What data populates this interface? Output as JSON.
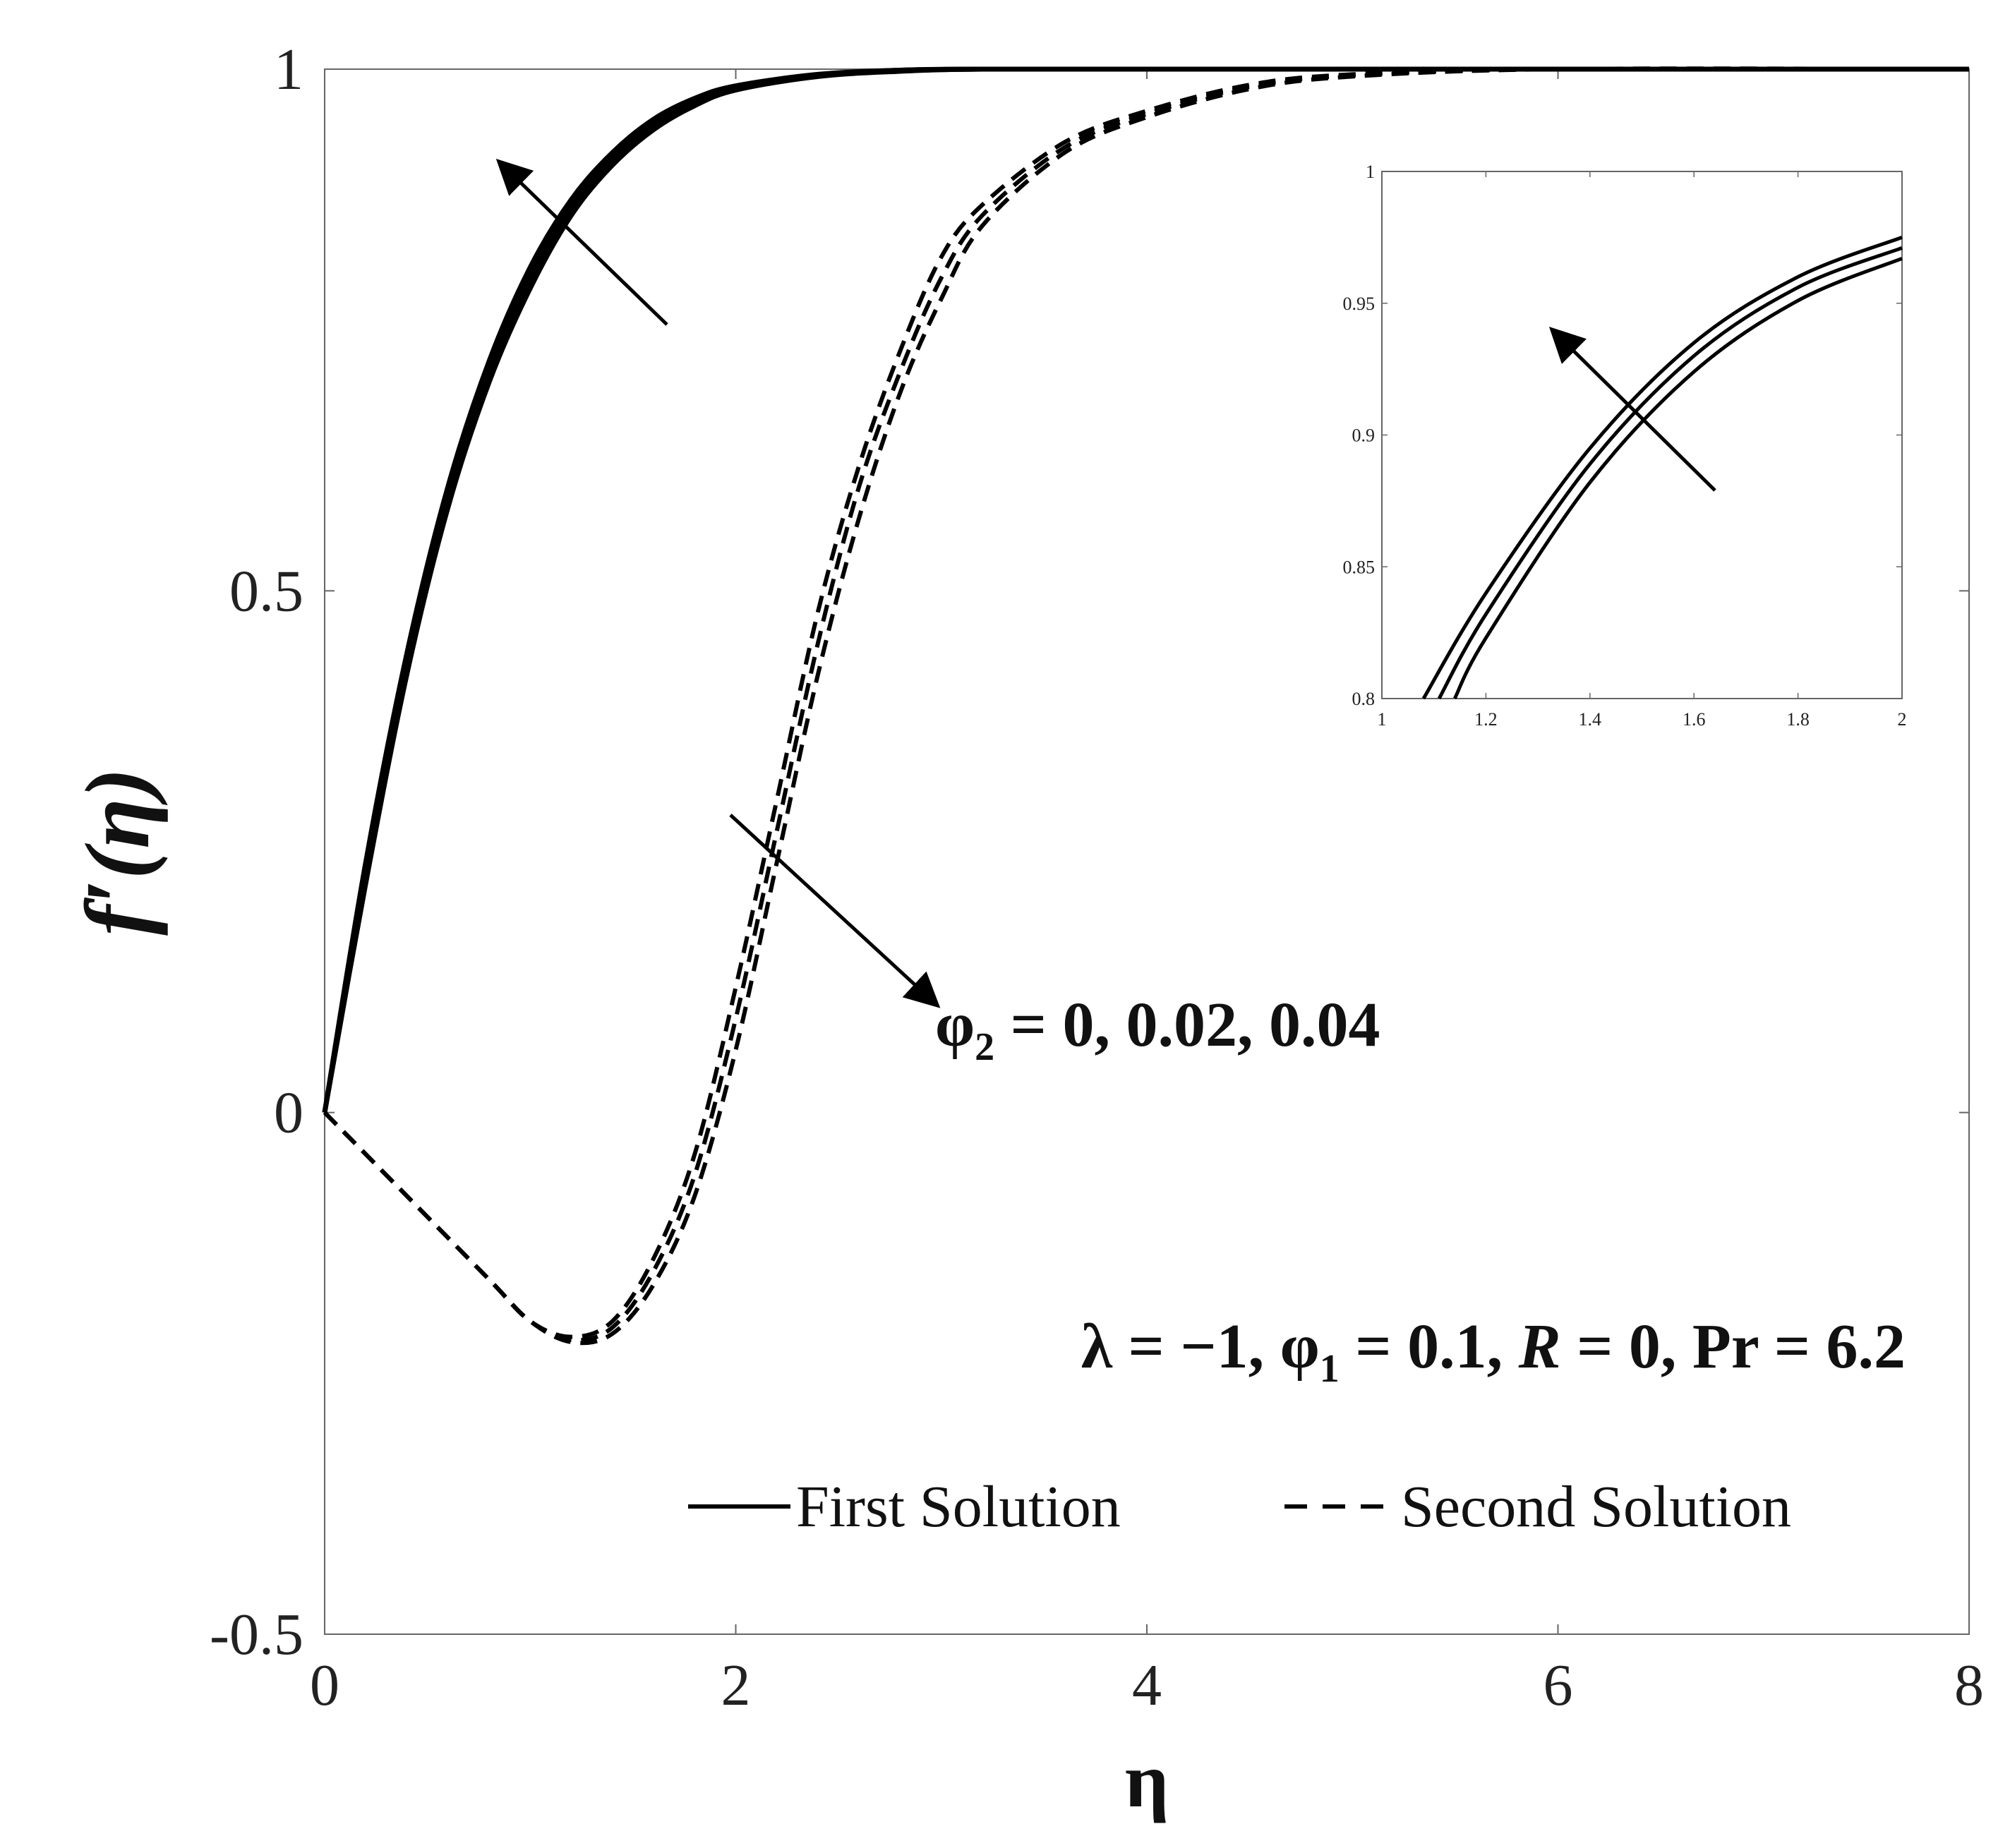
{
  "chart_data": {
    "type": "line",
    "title": "",
    "xlabel": "η",
    "ylabel": "f′(η)",
    "xlim": [
      0,
      8
    ],
    "ylim": [
      -0.5,
      1
    ],
    "xticks": [
      0,
      2,
      4,
      6,
      8
    ],
    "xtick_labels": [
      "0",
      "2",
      "4",
      "6",
      "8"
    ],
    "yticks": [
      -0.5,
      0,
      0.5,
      1
    ],
    "ytick_labels": [
      "-0.5",
      "0",
      "0.5",
      "1"
    ],
    "grid": false,
    "legend": {
      "placement": "bottom-right",
      "entries": [
        {
          "label": "First Solution",
          "style": "solid"
        },
        {
          "label": "Second Solution",
          "style": "dashed"
        }
      ]
    },
    "annotations": {
      "phi2_prefix": "φ",
      "phi2_sub": "2",
      "phi2_rest": " = 0, 0.02, 0.04",
      "params_lambda": "λ = −1, φ",
      "params_sub": "1",
      "params_mid": " = 0.1, ",
      "params_R": "R",
      "params_rest": " = 0, Pr = 6.2"
    },
    "series": [
      {
        "style": "solid",
        "x": [
          0,
          0.2,
          0.4,
          0.6,
          0.8,
          1.0,
          1.2,
          1.4,
          1.6,
          1.8,
          2.0,
          2.4,
          2.8,
          3.2,
          4.0,
          5.0,
          6.0,
          8.0
        ],
        "y": [
          0,
          0.24,
          0.44,
          0.6,
          0.72,
          0.81,
          0.875,
          0.92,
          0.952,
          0.972,
          0.984,
          0.995,
          0.999,
          1.0,
          1.0,
          1.0,
          1.0,
          1.0
        ]
      },
      {
        "style": "solid",
        "x": [
          0,
          0.2,
          0.4,
          0.6,
          0.8,
          1.0,
          1.2,
          1.4,
          1.6,
          1.8,
          2.0,
          2.4,
          2.8,
          3.2,
          4.0,
          5.0,
          6.0,
          8.0
        ],
        "y": [
          0,
          0.23,
          0.43,
          0.59,
          0.71,
          0.8,
          0.868,
          0.914,
          0.947,
          0.969,
          0.982,
          0.994,
          0.999,
          1.0,
          1.0,
          1.0,
          1.0,
          1.0
        ]
      },
      {
        "style": "solid",
        "x": [
          0,
          0.2,
          0.4,
          0.6,
          0.8,
          1.0,
          1.2,
          1.4,
          1.6,
          1.8,
          2.0,
          2.4,
          2.8,
          3.2,
          4.0,
          5.0,
          6.0,
          8.0
        ],
        "y": [
          0,
          0.22,
          0.42,
          0.58,
          0.7,
          0.79,
          0.86,
          0.908,
          0.942,
          0.965,
          0.98,
          0.993,
          0.998,
          1.0,
          1.0,
          1.0,
          1.0,
          1.0
        ]
      },
      {
        "style": "dashed",
        "x": [
          0,
          0.4,
          0.8,
          1.0,
          1.2,
          1.4,
          1.6,
          1.8,
          2.0,
          2.2,
          2.4,
          2.6,
          2.8,
          3.0,
          3.2,
          3.6,
          4.0,
          4.5,
          5.0,
          6.0,
          8.0
        ],
        "y": [
          0,
          -0.08,
          -0.16,
          -0.2,
          -0.215,
          -0.2,
          -0.14,
          -0.04,
          0.12,
          0.3,
          0.48,
          0.62,
          0.73,
          0.82,
          0.87,
          0.93,
          0.96,
          0.985,
          0.995,
          1.0,
          1.0
        ]
      },
      {
        "style": "dashed",
        "x": [
          0,
          0.4,
          0.8,
          1.0,
          1.2,
          1.4,
          1.6,
          1.8,
          2.0,
          2.2,
          2.4,
          2.6,
          2.8,
          3.0,
          3.2,
          3.6,
          4.0,
          4.5,
          5.0,
          6.0,
          8.0
        ],
        "y": [
          0,
          -0.08,
          -0.16,
          -0.2,
          -0.218,
          -0.206,
          -0.152,
          -0.06,
          0.09,
          0.27,
          0.45,
          0.6,
          0.71,
          0.8,
          0.86,
          0.925,
          0.957,
          0.983,
          0.994,
          1.0,
          1.0
        ]
      },
      {
        "style": "dashed",
        "x": [
          0,
          0.4,
          0.8,
          1.0,
          1.2,
          1.4,
          1.6,
          1.8,
          2.0,
          2.2,
          2.4,
          2.6,
          2.8,
          3.0,
          3.2,
          3.6,
          4.0,
          4.5,
          5.0,
          6.0,
          8.0
        ],
        "y": [
          0,
          -0.08,
          -0.16,
          -0.2,
          -0.22,
          -0.212,
          -0.165,
          -0.08,
          0.06,
          0.24,
          0.42,
          0.57,
          0.69,
          0.78,
          0.85,
          0.92,
          0.954,
          0.981,
          0.993,
          1.0,
          1.0
        ]
      }
    ],
    "inset": {
      "xlim": [
        1,
        2
      ],
      "ylim": [
        0.8,
        1
      ],
      "xticks": [
        1,
        1.2,
        1.4,
        1.6,
        1.8,
        2
      ],
      "xtick_labels": [
        "1",
        "1.2",
        "1.4",
        "1.6",
        "1.8",
        "2"
      ],
      "yticks": [
        0.8,
        0.85,
        0.9,
        0.95,
        1
      ],
      "ytick_labels": [
        "0.8",
        "0.85",
        "0.9",
        "0.95",
        "1"
      ],
      "series": [
        {
          "x": [
            1.08,
            1.2,
            1.4,
            1.6,
            1.8,
            2.0
          ],
          "y": [
            0.8,
            0.84,
            0.895,
            0.935,
            0.96,
            0.975
          ]
        },
        {
          "x": [
            1.11,
            1.2,
            1.4,
            1.6,
            1.8,
            2.0
          ],
          "y": [
            0.8,
            0.832,
            0.889,
            0.93,
            0.956,
            0.971
          ]
        },
        {
          "x": [
            1.14,
            1.2,
            1.4,
            1.6,
            1.8,
            2.0
          ],
          "y": [
            0.8,
            0.823,
            0.882,
            0.924,
            0.951,
            0.967
          ]
        }
      ]
    }
  }
}
